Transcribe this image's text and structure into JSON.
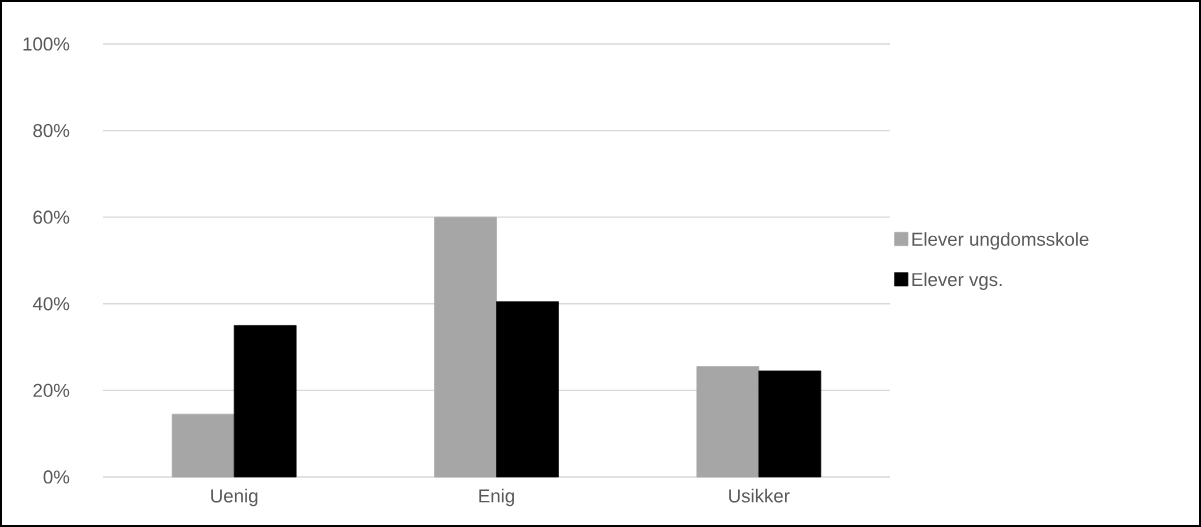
{
  "chart_data": {
    "type": "bar",
    "categories": [
      "Uenig",
      "Enig",
      "Usikker"
    ],
    "series": [
      {
        "name": "Elever ungdomsskole",
        "color": "#a6a6a6",
        "values": [
          14.5,
          60,
          25.5
        ]
      },
      {
        "name": "Elever vgs.",
        "color": "#000000",
        "values": [
          35,
          40.5,
          24.5
        ]
      }
    ],
    "ylim": [
      0,
      100
    ],
    "yticks": [
      {
        "value": 0,
        "label": "0%"
      },
      {
        "value": 20,
        "label": "20%"
      },
      {
        "value": 40,
        "label": "40%"
      },
      {
        "value": 60,
        "label": "60%"
      },
      {
        "value": 80,
        "label": "80%"
      },
      {
        "value": 100,
        "label": "100%"
      }
    ],
    "grid": "y",
    "legend": "right"
  }
}
